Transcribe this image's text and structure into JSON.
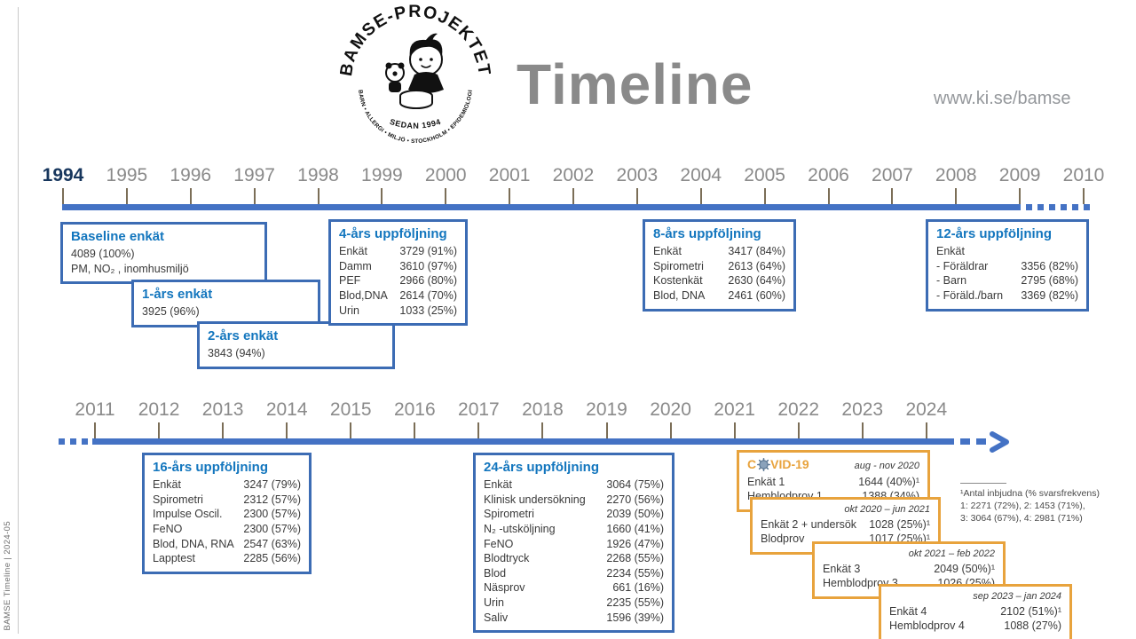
{
  "side_label": "BAMSE Timeline | 2024-05",
  "header": {
    "title": "Timeline",
    "url": "www.ki.se/bamse",
    "logo": {
      "arc_top": "BAMSE-PROJEKTET",
      "arc_bottom": "BARN • ALLERGI • MILJÖ • STOCKHOLM • EPIDEMIOLOGI",
      "inner": "SEDAN 1994"
    }
  },
  "colors": {
    "timeline_blue": "#4472c4",
    "box_border_blue": "#3c6cb4",
    "box_title_blue": "#1376be",
    "covid_orange": "#e8a33d",
    "year_gray": "#8a8a8a",
    "highlight_navy": "#17365d"
  },
  "timelines": {
    "top": {
      "highlighted": "1994",
      "years": [
        "1994",
        "1995",
        "1996",
        "1997",
        "1998",
        "1999",
        "2000",
        "2001",
        "2002",
        "2003",
        "2004",
        "2005",
        "2006",
        "2007",
        "2008",
        "2009",
        "2010"
      ]
    },
    "bottom": {
      "highlighted": "",
      "years": [
        "2011",
        "2012",
        "2013",
        "2014",
        "2015",
        "2016",
        "2017",
        "2018",
        "2019",
        "2020",
        "2021",
        "2022",
        "2023",
        "2024"
      ]
    }
  },
  "boxes": {
    "baseline": {
      "title": "Baseline enkät",
      "rows": [
        {
          "label": "4089  (100%)",
          "value": ""
        },
        {
          "label": "PM, NO₂ , inomhusmiljö",
          "value": ""
        }
      ]
    },
    "one_year": {
      "title": "1-års enkät",
      "rows": [
        {
          "label": "3925  (96%)",
          "value": ""
        }
      ]
    },
    "two_year": {
      "title": "2-års enkät",
      "rows": [
        {
          "label": "3843  (94%)",
          "value": ""
        }
      ]
    },
    "four_year": {
      "title": "4-års uppföljning",
      "rows": [
        {
          "label": "Enkät",
          "value": "3729  (91%)"
        },
        {
          "label": "Damm",
          "value": "3610  (97%)"
        },
        {
          "label": "PEF",
          "value": "2966  (80%)"
        },
        {
          "label": "Blod,DNA",
          "value": "2614  (70%)"
        },
        {
          "label": "Urin",
          "value": "1033  (25%)"
        }
      ]
    },
    "eight_year": {
      "title": "8-års uppföljning",
      "rows": [
        {
          "label": "Enkät",
          "value": "3417  (84%)"
        },
        {
          "label": "Spirometri",
          "value": "2613  (64%)"
        },
        {
          "label": "Kostenkät",
          "value": "2630  (64%)"
        },
        {
          "label": "Blod, DNA",
          "value": "2461  (60%)"
        }
      ]
    },
    "twelve_year": {
      "title": "12-års uppföljning",
      "rows": [
        {
          "label": "Enkät",
          "value": ""
        },
        {
          "label": "- Föräldrar",
          "value": "3356 (82%)"
        },
        {
          "label": "- Barn",
          "value": "2795 (68%)"
        },
        {
          "label": "- Föräld./barn",
          "value": "3369 (82%)"
        }
      ]
    },
    "sixteen_year": {
      "title": "16-års uppföljning",
      "rows": [
        {
          "label": "Enkät",
          "value": "3247 (79%)"
        },
        {
          "label": "Spirometri",
          "value": "2312 (57%)"
        },
        {
          "label": "Impulse Oscil.",
          "value": "2300 (57%)"
        },
        {
          "label": "FeNO",
          "value": "2300 (57%)"
        },
        {
          "label": "Blod, DNA, RNA",
          "value": "2547 (63%)"
        },
        {
          "label": "Lapptest",
          "value": "2285 (56%)"
        }
      ]
    },
    "twentyfour_year": {
      "title": "24-års uppföljning",
      "rows": [
        {
          "label": "Enkät",
          "value": "3064  (75%)"
        },
        {
          "label": "Klinisk undersökning",
          "value": "2270  (56%)"
        },
        {
          "label": "Spirometri",
          "value": "2039  (50%)"
        },
        {
          "label": "N₂ -utsköljning",
          "value": "1660  (41%)"
        },
        {
          "label": "FeNO",
          "value": "1926  (47%)"
        },
        {
          "label": "Blodtryck",
          "value": "2268  (55%)"
        },
        {
          "label": "Blod",
          "value": "2234  (55%)"
        },
        {
          "label": "Näsprov",
          "value": "661  (16%)"
        },
        {
          "label": "Urin",
          "value": "2235  (55%)"
        },
        {
          "label": "Saliv",
          "value": "1596  (39%)"
        }
      ]
    },
    "covid1": {
      "title_pre": "C",
      "title_post": "VID-19",
      "date": "aug - nov 2020",
      "rows": [
        {
          "label": "Enkät 1",
          "value": "1644 (40%)¹"
        },
        {
          "label": "Hemblodprov 1",
          "value": "1388 (34%)"
        }
      ]
    },
    "covid2": {
      "date": "okt 2020 – jun 2021",
      "rows": [
        {
          "label": "Enkät 2 + undersök",
          "value": "1028 (25%)¹"
        },
        {
          "label": "Blodprov",
          "value": "1017 (25%)¹"
        }
      ]
    },
    "covid3": {
      "date": "okt 2021 – feb 2022",
      "rows": [
        {
          "label": "Enkät 3",
          "value": "2049 (50%)¹"
        },
        {
          "label": "Hemblodprov 3",
          "value": "1026 (25%)"
        }
      ]
    },
    "covid4": {
      "date": "sep 2023 – jan 2024",
      "rows": [
        {
          "label": "Enkät 4",
          "value": "2102 (51%)¹"
        },
        {
          "label": "Hemblodprov 4",
          "value": "1088 (27%)"
        }
      ]
    }
  },
  "footnote": {
    "line1": "¹Antal inbjudna (% svarsfrekvens)",
    "line2": "1: 2271 (72%), 2: 1453 (71%),",
    "line3": "3: 3064 (67%), 4: 2981 (71%)"
  }
}
